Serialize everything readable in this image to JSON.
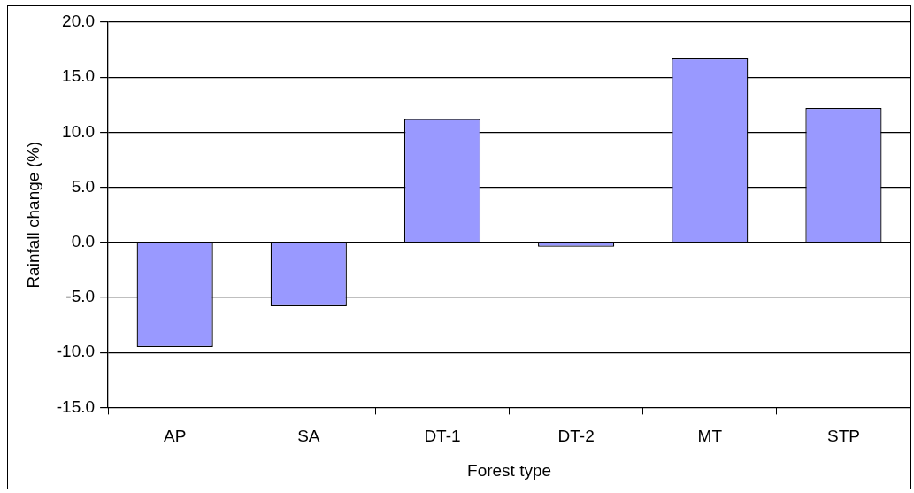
{
  "chart_data": {
    "type": "bar",
    "xlabel": "Forest type",
    "ylabel": "Rainfall change (%)",
    "categories": [
      "AP",
      "SA",
      "DT-1",
      "DT-2",
      "MT",
      "STP"
    ],
    "series": [
      {
        "color": "#9999ff",
        "values": [
          -9.5,
          -5.8,
          11.2,
          -0.4,
          16.7,
          12.2
        ]
      }
    ],
    "ylim": [
      -15,
      20
    ],
    "yticks": [
      {
        "value": -15,
        "label": "-15.0"
      },
      {
        "value": -10,
        "label": "-10.0"
      },
      {
        "value": -5,
        "label": "-5.0"
      },
      {
        "value": 0,
        "label": "0.0"
      },
      {
        "value": 5,
        "label": "5.0"
      },
      {
        "value": 10,
        "label": "10.0"
      },
      {
        "value": 15,
        "label": "15.0"
      },
      {
        "value": 20,
        "label": "20.0"
      }
    ],
    "grid": "y",
    "legend": false
  }
}
